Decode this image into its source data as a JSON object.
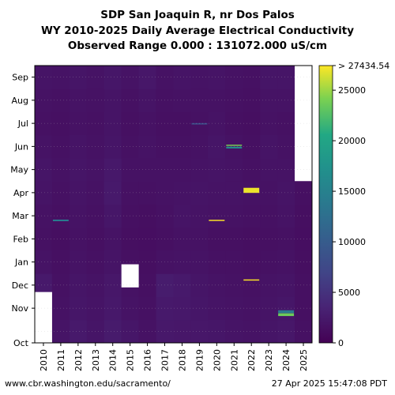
{
  "chart_data": {
    "type": "heatmap",
    "title": "SDP San Joaquin R, nr Dos Palos",
    "subtitle": "WY 2010-2025 Daily Average Electrical Conductivity",
    "range_note": "Observed Range 0.000 : 131072.000 uS/cm",
    "x_categories": [
      "2010",
      "2011",
      "2012",
      "2013",
      "2014",
      "2015",
      "2016",
      "2017",
      "2018",
      "2019",
      "2020",
      "2021",
      "2022",
      "2023",
      "2024",
      "2025"
    ],
    "y_months": [
      "Oct",
      "Nov",
      "Dec",
      "Jan",
      "Feb",
      "Mar",
      "Apr",
      "May",
      "Jun",
      "Jul",
      "Aug",
      "Sep"
    ],
    "y_axis": "water year month, Oct to Sep",
    "colorscale": "viridis",
    "colorbar_range": [
      0,
      27434.54
    ],
    "colorbar_ticks": [
      0,
      5000,
      10000,
      15000,
      20000,
      25000
    ],
    "colorbar_tick_labels": [
      "0",
      "5000",
      "10000",
      "15000",
      "20000",
      "25000"
    ],
    "colorbar_max_label": "> 27434.54",
    "base_values": [
      [
        2600,
        2200,
        2400,
        1800,
        1600,
        1700,
        1900,
        2000,
        1800,
        1600,
        1700,
        1900
      ],
      [
        1900,
        1700,
        1600,
        1500,
        1400,
        1500,
        1600,
        1700,
        1600,
        1500,
        1600,
        1800
      ],
      [
        2400,
        2100,
        2000,
        1800,
        1700,
        1800,
        1900,
        2000,
        1900,
        1700,
        1800,
        2000
      ],
      [
        2000,
        1900,
        1800,
        1600,
        1500,
        1600,
        1700,
        1800,
        1700,
        1600,
        1700,
        1800
      ],
      [
        2500,
        2300,
        2200,
        1900,
        1800,
        2100,
        2400,
        2300,
        2000,
        1900,
        1900,
        2100
      ],
      [
        2100,
        1800,
        1700,
        1500,
        1400,
        1500,
        1600,
        1700,
        1600,
        1500,
        1600,
        1800
      ],
      [
        1700,
        1600,
        1500,
        1400,
        1300,
        1400,
        1600,
        1700,
        1800,
        1700,
        1900,
        2200
      ],
      [
        2300,
        2400,
        2600,
        1700,
        1500,
        1600,
        1700,
        1700,
        1600,
        1500,
        1600,
        1700
      ],
      [
        2200,
        2300,
        2400,
        1800,
        1700,
        1900,
        1800,
        1700,
        1600,
        1500,
        1700,
        1900
      ],
      [
        2200,
        2100,
        2000,
        1800,
        1700,
        1800,
        1900,
        1800,
        1700,
        1600,
        1700,
        1800
      ],
      [
        2100,
        1900,
        1800,
        1600,
        1500,
        1700,
        1800,
        1900,
        2000,
        1800,
        1700,
        1900
      ],
      [
        1900,
        1800,
        1700,
        1600,
        1500,
        1700,
        1800,
        1800,
        1700,
        1500,
        1600,
        1700
      ],
      [
        1800,
        1700,
        1600,
        1500,
        1400,
        1600,
        1700,
        1600,
        1500,
        1400,
        1500,
        1600
      ],
      [
        2000,
        1900,
        1800,
        1600,
        1500,
        1600,
        1700,
        1800,
        1900,
        1700,
        1800,
        2000
      ],
      [
        2200,
        2100,
        1900,
        1700,
        1600,
        1800,
        1900,
        1800,
        1700,
        1600,
        1800,
        2000
      ],
      [
        1600,
        1500,
        1500,
        1400,
        1300,
        1400,
        1500,
        1600,
        null,
        null,
        null,
        null
      ]
    ],
    "missing_periods": [
      {
        "year": "2010",
        "from_month": 0.0,
        "to_month": 2.2
      },
      {
        "year": "2015",
        "from_month": 2.4,
        "to_month": 3.4
      },
      {
        "year": "2025",
        "from_month": 7.0,
        "to_month": 12.0
      }
    ],
    "spikes": [
      {
        "year": "2011",
        "month_pos": 5.3,
        "span": 0.07,
        "value": 14000
      },
      {
        "year": "2019",
        "month_pos": 9.48,
        "span": 0.06,
        "value": 8000
      },
      {
        "year": "2020",
        "month_pos": 5.3,
        "span": 0.05,
        "value": 27434.54
      },
      {
        "year": "2021",
        "month_pos": 8.45,
        "span": 0.07,
        "value": 17000
      },
      {
        "year": "2021",
        "month_pos": 8.55,
        "span": 0.05,
        "value": 24000
      },
      {
        "year": "2022",
        "month_pos": 6.6,
        "span": 0.22,
        "value": 27000
      },
      {
        "year": "2022",
        "month_pos": 2.72,
        "span": 0.05,
        "value": 27434.54
      },
      {
        "year": "2024",
        "month_pos": 1.35,
        "span": 0.12,
        "value": 14000
      },
      {
        "year": "2024",
        "month_pos": 1.22,
        "span": 0.12,
        "value": 23500
      }
    ]
  },
  "footer": {
    "url": "www.cbr.washington.edu/sacramento/",
    "timestamp": "27 Apr 2025 15:47:08 PDT"
  }
}
